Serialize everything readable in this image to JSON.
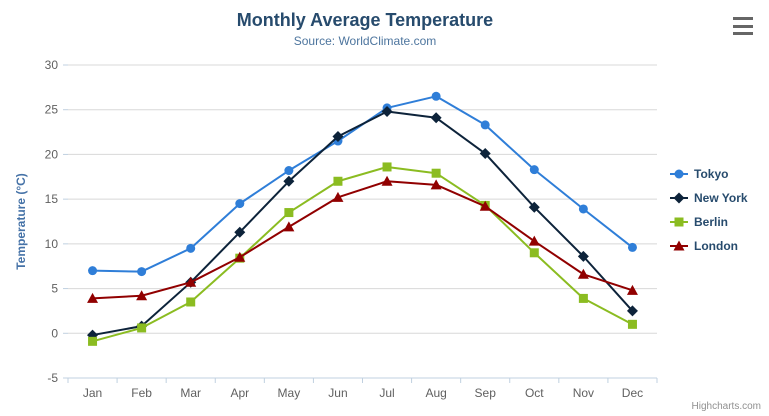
{
  "header": {
    "title": "Monthly Average Temperature",
    "subtitle": "Source: WorldClimate.com"
  },
  "export_menu": {
    "icon": "hamburger-menu-icon"
  },
  "credits": {
    "label": "Highcharts.com"
  },
  "colors": {
    "title": "#274b6d",
    "subtitle": "#4d759e",
    "axis_label": "#606060",
    "axis_title": "#4572a7",
    "gridline": "#d8d8d8",
    "axis_line": "#c0d0e0",
    "legend_text": "#274b6d",
    "credits_text": "#909090",
    "menu_icon": "#666666"
  },
  "chart_data": {
    "type": "line",
    "title": "Monthly Average Temperature",
    "subtitle": "Source: WorldClimate.com",
    "xlabel": "",
    "ylabel": "Temperature (°C)",
    "categories": [
      "Jan",
      "Feb",
      "Mar",
      "Apr",
      "May",
      "Jun",
      "Jul",
      "Aug",
      "Sep",
      "Oct",
      "Nov",
      "Dec"
    ],
    "ylim": [
      -5,
      30
    ],
    "ytick_step": 5,
    "yticks": [
      -5,
      0,
      5,
      10,
      15,
      20,
      25,
      30
    ],
    "grid": true,
    "legend_position": "right",
    "series": [
      {
        "name": "Tokyo",
        "color": "#2f7ed8",
        "marker": "circle",
        "values": [
          7.0,
          6.9,
          9.5,
          14.5,
          18.2,
          21.5,
          25.2,
          26.5,
          23.3,
          18.3,
          13.9,
          9.6
        ]
      },
      {
        "name": "New York",
        "color": "#0d233a",
        "marker": "diamond",
        "values": [
          -0.2,
          0.8,
          5.7,
          11.3,
          17.0,
          22.0,
          24.8,
          24.1,
          20.1,
          14.1,
          8.6,
          2.5
        ]
      },
      {
        "name": "Berlin",
        "color": "#8bbc21",
        "marker": "square",
        "values": [
          -0.9,
          0.6,
          3.5,
          8.4,
          13.5,
          17.0,
          18.6,
          17.9,
          14.3,
          9.0,
          3.9,
          1.0
        ]
      },
      {
        "name": "London",
        "color": "#910000",
        "marker": "triangle",
        "values": [
          3.9,
          4.2,
          5.7,
          8.5,
          11.9,
          15.2,
          17.0,
          16.6,
          14.2,
          10.3,
          6.6,
          4.8
        ]
      }
    ]
  }
}
